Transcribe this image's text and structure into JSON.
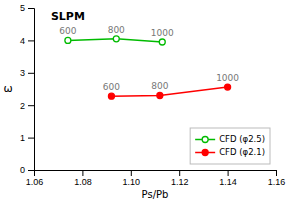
{
  "chart_data": {
    "type": "line",
    "title": "SLPM",
    "x_label": "Ps/Pb",
    "y_label": "ω",
    "xlim": [
      1.06,
      1.16
    ],
    "ylim": [
      0,
      5
    ],
    "xticks": [
      1.06,
      1.08,
      {
        "value": 1.1,
        "label": "1.10"
      },
      1.12,
      1.14,
      1.16
    ],
    "yticks": [
      0,
      1,
      2,
      3,
      4,
      5
    ],
    "grid": false,
    "legend": "lower right",
    "series": [
      {
        "name": "CFD (φ2.5)",
        "color": "#00bb00",
        "marker": "open-circle",
        "line_style": "solid",
        "x": [
          1.074,
          1.094,
          1.113
        ],
        "values": [
          4.0,
          4.05,
          3.95
        ],
        "annotations": [
          "600",
          "800",
          "1000"
        ]
      },
      {
        "name": "CFD (φ2.1)",
        "color": "#ff0000",
        "marker": "circle",
        "line_style": "solid",
        "x": [
          1.092,
          1.112,
          1.14
        ],
        "values": [
          2.28,
          2.3,
          2.56
        ],
        "annotations": [
          "600",
          "800",
          "1000"
        ]
      }
    ]
  }
}
